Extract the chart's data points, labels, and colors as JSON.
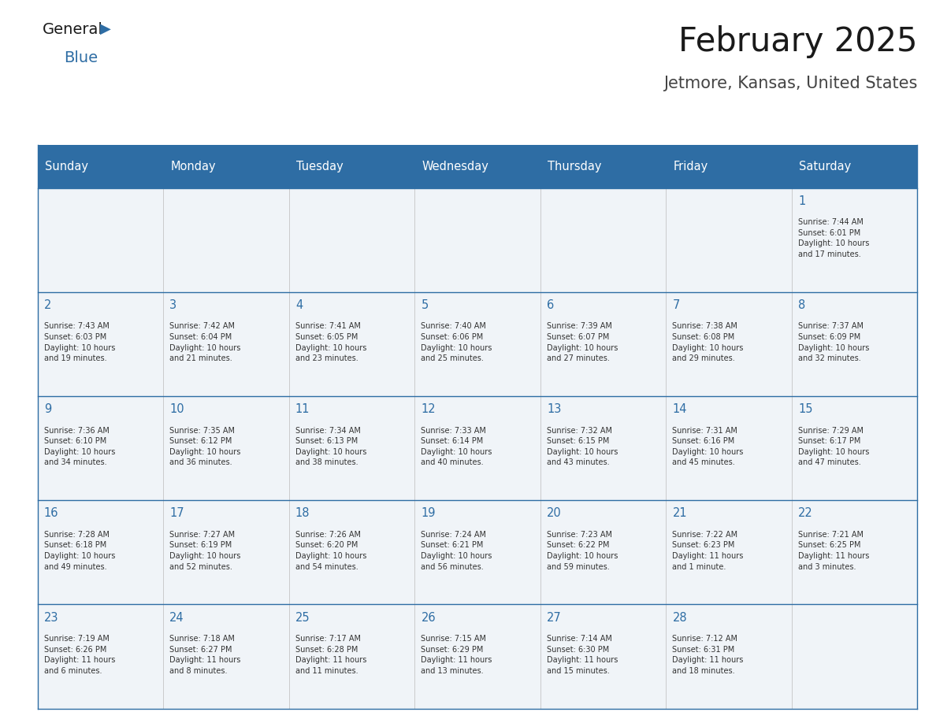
{
  "title": "February 2025",
  "subtitle": "Jetmore, Kansas, United States",
  "header_bg_color": "#2E6DA4",
  "header_text_color": "#FFFFFF",
  "cell_bg_color": "#F0F4F8",
  "day_number_color": "#2E6DA4",
  "text_color": "#333333",
  "border_color": "#2E6DA4",
  "days_of_week": [
    "Sunday",
    "Monday",
    "Tuesday",
    "Wednesday",
    "Thursday",
    "Friday",
    "Saturday"
  ],
  "weeks": [
    [
      {
        "day": null,
        "info": null
      },
      {
        "day": null,
        "info": null
      },
      {
        "day": null,
        "info": null
      },
      {
        "day": null,
        "info": null
      },
      {
        "day": null,
        "info": null
      },
      {
        "day": null,
        "info": null
      },
      {
        "day": 1,
        "info": "Sunrise: 7:44 AM\nSunset: 6:01 PM\nDaylight: 10 hours\nand 17 minutes."
      }
    ],
    [
      {
        "day": 2,
        "info": "Sunrise: 7:43 AM\nSunset: 6:03 PM\nDaylight: 10 hours\nand 19 minutes."
      },
      {
        "day": 3,
        "info": "Sunrise: 7:42 AM\nSunset: 6:04 PM\nDaylight: 10 hours\nand 21 minutes."
      },
      {
        "day": 4,
        "info": "Sunrise: 7:41 AM\nSunset: 6:05 PM\nDaylight: 10 hours\nand 23 minutes."
      },
      {
        "day": 5,
        "info": "Sunrise: 7:40 AM\nSunset: 6:06 PM\nDaylight: 10 hours\nand 25 minutes."
      },
      {
        "day": 6,
        "info": "Sunrise: 7:39 AM\nSunset: 6:07 PM\nDaylight: 10 hours\nand 27 minutes."
      },
      {
        "day": 7,
        "info": "Sunrise: 7:38 AM\nSunset: 6:08 PM\nDaylight: 10 hours\nand 29 minutes."
      },
      {
        "day": 8,
        "info": "Sunrise: 7:37 AM\nSunset: 6:09 PM\nDaylight: 10 hours\nand 32 minutes."
      }
    ],
    [
      {
        "day": 9,
        "info": "Sunrise: 7:36 AM\nSunset: 6:10 PM\nDaylight: 10 hours\nand 34 minutes."
      },
      {
        "day": 10,
        "info": "Sunrise: 7:35 AM\nSunset: 6:12 PM\nDaylight: 10 hours\nand 36 minutes."
      },
      {
        "day": 11,
        "info": "Sunrise: 7:34 AM\nSunset: 6:13 PM\nDaylight: 10 hours\nand 38 minutes."
      },
      {
        "day": 12,
        "info": "Sunrise: 7:33 AM\nSunset: 6:14 PM\nDaylight: 10 hours\nand 40 minutes."
      },
      {
        "day": 13,
        "info": "Sunrise: 7:32 AM\nSunset: 6:15 PM\nDaylight: 10 hours\nand 43 minutes."
      },
      {
        "day": 14,
        "info": "Sunrise: 7:31 AM\nSunset: 6:16 PM\nDaylight: 10 hours\nand 45 minutes."
      },
      {
        "day": 15,
        "info": "Sunrise: 7:29 AM\nSunset: 6:17 PM\nDaylight: 10 hours\nand 47 minutes."
      }
    ],
    [
      {
        "day": 16,
        "info": "Sunrise: 7:28 AM\nSunset: 6:18 PM\nDaylight: 10 hours\nand 49 minutes."
      },
      {
        "day": 17,
        "info": "Sunrise: 7:27 AM\nSunset: 6:19 PM\nDaylight: 10 hours\nand 52 minutes."
      },
      {
        "day": 18,
        "info": "Sunrise: 7:26 AM\nSunset: 6:20 PM\nDaylight: 10 hours\nand 54 minutes."
      },
      {
        "day": 19,
        "info": "Sunrise: 7:24 AM\nSunset: 6:21 PM\nDaylight: 10 hours\nand 56 minutes."
      },
      {
        "day": 20,
        "info": "Sunrise: 7:23 AM\nSunset: 6:22 PM\nDaylight: 10 hours\nand 59 minutes."
      },
      {
        "day": 21,
        "info": "Sunrise: 7:22 AM\nSunset: 6:23 PM\nDaylight: 11 hours\nand 1 minute."
      },
      {
        "day": 22,
        "info": "Sunrise: 7:21 AM\nSunset: 6:25 PM\nDaylight: 11 hours\nand 3 minutes."
      }
    ],
    [
      {
        "day": 23,
        "info": "Sunrise: 7:19 AM\nSunset: 6:26 PM\nDaylight: 11 hours\nand 6 minutes."
      },
      {
        "day": 24,
        "info": "Sunrise: 7:18 AM\nSunset: 6:27 PM\nDaylight: 11 hours\nand 8 minutes."
      },
      {
        "day": 25,
        "info": "Sunrise: 7:17 AM\nSunset: 6:28 PM\nDaylight: 11 hours\nand 11 minutes."
      },
      {
        "day": 26,
        "info": "Sunrise: 7:15 AM\nSunset: 6:29 PM\nDaylight: 11 hours\nand 13 minutes."
      },
      {
        "day": 27,
        "info": "Sunrise: 7:14 AM\nSunset: 6:30 PM\nDaylight: 11 hours\nand 15 minutes."
      },
      {
        "day": 28,
        "info": "Sunrise: 7:12 AM\nSunset: 6:31 PM\nDaylight: 11 hours\nand 18 minutes."
      },
      {
        "day": null,
        "info": null
      }
    ]
  ],
  "logo_general_color": "#1a1a1a",
  "logo_blue_color": "#2E6DA4",
  "title_color": "#1a1a1a",
  "subtitle_color": "#444444"
}
